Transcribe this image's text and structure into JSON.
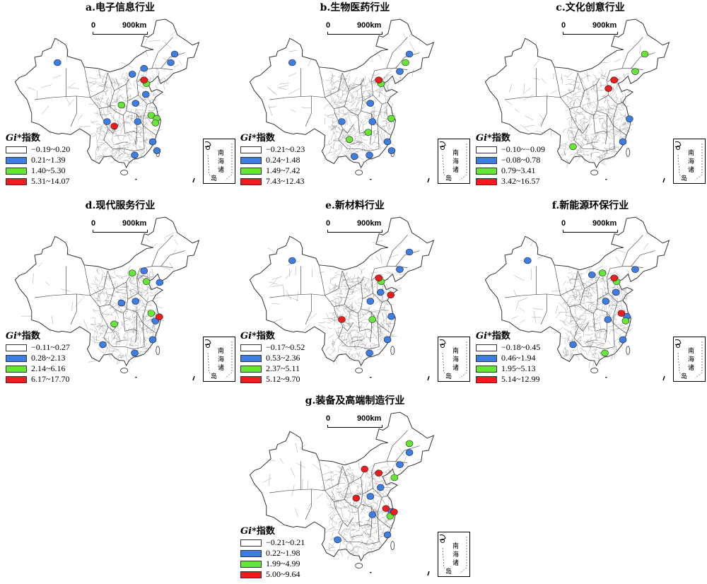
{
  "panels": [
    {
      "title": "a.电子信息行业",
      "scale": {
        "zero": "0",
        "dist": "900km"
      },
      "legend": {
        "gi": "Gi*",
        "suffix": "指数",
        "classes": [
          "−0.19~0.20",
          "0.21~1.39",
          "1.40~5.30",
          "5.31~14.07"
        ]
      },
      "hotspots": [
        {
          "cls": 1,
          "lon": 116.4,
          "lat": 42.5
        },
        {
          "cls": 1,
          "lon": 112.5,
          "lat": 41.2
        },
        {
          "cls": 1,
          "lon": 126.6,
          "lat": 45.7
        },
        {
          "cls": 1,
          "lon": 125.3,
          "lat": 43.8
        },
        {
          "cls": 1,
          "lon": 87.6,
          "lat": 43.8
        },
        {
          "cls": 1,
          "lon": 113.6,
          "lat": 34.7
        },
        {
          "cls": 1,
          "lon": 114.3,
          "lat": 30.6
        },
        {
          "cls": 1,
          "lon": 104.1,
          "lat": 30.6
        },
        {
          "cls": 1,
          "lon": 113.3,
          "lat": 23.1
        },
        {
          "cls": 1,
          "lon": 119.3,
          "lat": 26.1
        },
        {
          "cls": 1,
          "lon": 120.7,
          "lat": 24.1
        },
        {
          "cls": 1,
          "lon": 117.0,
          "lat": 36.7
        },
        {
          "cls": 2,
          "lon": 118.8,
          "lat": 32.0
        },
        {
          "cls": 2,
          "lon": 120.6,
          "lat": 31.3
        },
        {
          "cls": 2,
          "lon": 120.2,
          "lat": 30.3
        },
        {
          "cls": 2,
          "lon": 117.2,
          "lat": 39.1
        },
        {
          "cls": 2,
          "lon": 108.9,
          "lat": 34.3
        },
        {
          "cls": 3,
          "lon": 116.4,
          "lat": 39.9
        },
        {
          "cls": 3,
          "lon": 106.5,
          "lat": 29.6
        }
      ]
    },
    {
      "title": "b.生物医药行业",
      "scale": {
        "zero": "0",
        "dist": "900km"
      },
      "legend": {
        "gi": "Gi*",
        "suffix": "指数",
        "classes": [
          "−0.21~0.23",
          "0.24~1.48",
          "1.49~7.42",
          "7.43~12.43"
        ]
      },
      "hotspots": [
        {
          "cls": 1,
          "lon": 126.6,
          "lat": 45.7
        },
        {
          "cls": 1,
          "lon": 123.4,
          "lat": 41.8
        },
        {
          "cls": 1,
          "lon": 87.6,
          "lat": 43.8
        },
        {
          "cls": 1,
          "lon": 113.6,
          "lat": 34.7
        },
        {
          "cls": 1,
          "lon": 114.3,
          "lat": 30.6
        },
        {
          "cls": 1,
          "lon": 104.1,
          "lat": 30.6
        },
        {
          "cls": 1,
          "lon": 113.3,
          "lat": 23.1
        },
        {
          "cls": 1,
          "lon": 119.3,
          "lat": 26.1
        },
        {
          "cls": 1,
          "lon": 120.7,
          "lat": 24.1
        },
        {
          "cls": 1,
          "lon": 108.3,
          "lat": 22.8
        },
        {
          "cls": 2,
          "lon": 125.3,
          "lat": 43.8
        },
        {
          "cls": 2,
          "lon": 120.6,
          "lat": 31.3
        },
        {
          "cls": 2,
          "lon": 117.2,
          "lat": 39.1
        },
        {
          "cls": 2,
          "lon": 106.6,
          "lat": 26.6
        },
        {
          "cls": 2,
          "lon": 112.9,
          "lat": 28.2
        },
        {
          "cls": 3,
          "lon": 116.4,
          "lat": 39.9
        }
      ]
    },
    {
      "title": "c.文化创意行业",
      "scale": {
        "zero": "0",
        "dist": "900km"
      },
      "legend": {
        "gi": "Gi*",
        "suffix": "指数",
        "classes": [
          "−0.10~−0.09",
          "−0.08~0.78",
          "0.79~3.41",
          "3.42~16.57"
        ]
      },
      "hotspots": [
        {
          "cls": 1,
          "lon": 121.5,
          "lat": 31.2
        },
        {
          "cls": 1,
          "lon": 119.3,
          "lat": 26.1
        },
        {
          "cls": 2,
          "lon": 123.4,
          "lat": 41.8
        },
        {
          "cls": 2,
          "lon": 102.7,
          "lat": 25.0
        },
        {
          "cls": 2,
          "lon": 126.6,
          "lat": 45.7
        },
        {
          "cls": 3,
          "lon": 116.4,
          "lat": 39.9
        },
        {
          "cls": 3,
          "lon": 114.5,
          "lat": 38.0
        }
      ]
    },
    {
      "title": "d.现代服务行业",
      "scale": {
        "zero": "0",
        "dist": "900km"
      },
      "legend": {
        "gi": "Gi*",
        "suffix": "指数",
        "classes": [
          "−0.11~0.27",
          "0.28~2.13",
          "2.14~6.16",
          "6.17~17.70"
        ]
      },
      "hotspots": [
        {
          "cls": 1,
          "lon": 116.4,
          "lat": 41.5
        },
        {
          "cls": 1,
          "lon": 121.6,
          "lat": 38.9
        },
        {
          "cls": 1,
          "lon": 113.6,
          "lat": 34.7
        },
        {
          "cls": 1,
          "lon": 120.2,
          "lat": 30.3
        },
        {
          "cls": 1,
          "lon": 119.3,
          "lat": 26.1
        },
        {
          "cls": 1,
          "lon": 102.7,
          "lat": 25.0
        },
        {
          "cls": 1,
          "lon": 108.9,
          "lat": 34.3
        },
        {
          "cls": 1,
          "lon": 113.3,
          "lat": 23.1
        },
        {
          "cls": 2,
          "lon": 117.2,
          "lat": 39.1
        },
        {
          "cls": 2,
          "lon": 112.5,
          "lat": 41.0
        },
        {
          "cls": 2,
          "lon": 106.5,
          "lat": 29.6
        },
        {
          "cls": 2,
          "lon": 118.8,
          "lat": 32.0
        },
        {
          "cls": 3,
          "lon": 121.5,
          "lat": 31.2
        }
      ]
    },
    {
      "title": "e.新材料行业",
      "scale": {
        "zero": "0",
        "dist": "900km"
      },
      "legend": {
        "gi": "Gi*",
        "suffix": "指数",
        "classes": [
          "−0.17~0.52",
          "0.53~2.36",
          "2.37~5.11",
          "5.12~9.70"
        ]
      },
      "hotspots": [
        {
          "cls": 1,
          "lon": 126.6,
          "lat": 45.7
        },
        {
          "cls": 1,
          "lon": 123.4,
          "lat": 41.8
        },
        {
          "cls": 1,
          "lon": 87.6,
          "lat": 43.8
        },
        {
          "cls": 1,
          "lon": 117.0,
          "lat": 36.7
        },
        {
          "cls": 1,
          "lon": 120.6,
          "lat": 31.3
        },
        {
          "cls": 1,
          "lon": 119.3,
          "lat": 26.1
        },
        {
          "cls": 1,
          "lon": 113.3,
          "lat": 23.1
        },
        {
          "cls": 1,
          "lon": 113.6,
          "lat": 34.7
        },
        {
          "cls": 2,
          "lon": 117.2,
          "lat": 39.1
        },
        {
          "cls": 2,
          "lon": 114.3,
          "lat": 30.6
        },
        {
          "cls": 3,
          "lon": 116.4,
          "lat": 39.9
        },
        {
          "cls": 3,
          "lon": 104.1,
          "lat": 30.6
        },
        {
          "cls": 3,
          "lon": 120.4,
          "lat": 36.1
        }
      ]
    },
    {
      "title": "f.新能源环保行业",
      "scale": {
        "zero": "0",
        "dist": "900km"
      },
      "legend": {
        "gi": "Gi*",
        "suffix": "指数",
        "classes": [
          "−0.18~0.45",
          "0.46~1.94",
          "1.95~5.13",
          "5.14~12.99"
        ]
      },
      "hotspots": [
        {
          "cls": 1,
          "lon": 87.6,
          "lat": 43.8
        },
        {
          "cls": 1,
          "lon": 109.0,
          "lat": 40.6
        },
        {
          "cls": 1,
          "lon": 117.0,
          "lat": 36.7
        },
        {
          "cls": 1,
          "lon": 113.6,
          "lat": 34.7
        },
        {
          "cls": 1,
          "lon": 120.6,
          "lat": 31.3
        },
        {
          "cls": 1,
          "lon": 114.3,
          "lat": 30.6
        },
        {
          "cls": 1,
          "lon": 119.3,
          "lat": 26.1
        },
        {
          "cls": 1,
          "lon": 102.7,
          "lat": 25.0
        },
        {
          "cls": 1,
          "lon": 123.4,
          "lat": 41.8
        },
        {
          "cls": 2,
          "lon": 112.5,
          "lat": 41.0
        },
        {
          "cls": 2,
          "lon": 117.2,
          "lat": 39.1
        },
        {
          "cls": 2,
          "lon": 113.3,
          "lat": 23.1
        },
        {
          "cls": 2,
          "lon": 120.2,
          "lat": 30.3
        },
        {
          "cls": 3,
          "lon": 116.4,
          "lat": 39.9
        },
        {
          "cls": 3,
          "lon": 118.8,
          "lat": 32.0
        }
      ]
    },
    {
      "title": "g.装备及高端制造行业",
      "scale": {
        "zero": "0",
        "dist": "900km"
      },
      "legend": {
        "gi": "Gi*",
        "suffix": "指数",
        "classes": [
          "−0.21~0.21",
          "0.22~1.98",
          "1.99~4.99",
          "5.00~9.64"
        ]
      },
      "hotspots": [
        {
          "cls": 1,
          "lon": 126.6,
          "lat": 44.5
        },
        {
          "cls": 1,
          "lon": 123.4,
          "lat": 41.8
        },
        {
          "cls": 1,
          "lon": 117.0,
          "lat": 36.7
        },
        {
          "cls": 1,
          "lon": 113.6,
          "lat": 34.7
        },
        {
          "cls": 1,
          "lon": 120.6,
          "lat": 31.3
        },
        {
          "cls": 1,
          "lon": 119.3,
          "lat": 26.1
        },
        {
          "cls": 1,
          "lon": 102.7,
          "lat": 25.0
        },
        {
          "cls": 1,
          "lon": 114.3,
          "lat": 30.6
        },
        {
          "cls": 2,
          "lon": 126.6,
          "lat": 46.5
        },
        {
          "cls": 2,
          "lon": 121.6,
          "lat": 38.9
        },
        {
          "cls": 2,
          "lon": 120.2,
          "lat": 30.3
        },
        {
          "cls": 3,
          "lon": 111.7,
          "lat": 40.8
        },
        {
          "cls": 3,
          "lon": 116.4,
          "lat": 39.9
        },
        {
          "cls": 3,
          "lon": 108.9,
          "lat": 34.3
        },
        {
          "cls": 3,
          "lon": 118.8,
          "lat": 32.0
        },
        {
          "cls": 3,
          "lon": 121.5,
          "lat": 31.2
        }
      ]
    }
  ],
  "class_colors": [
    "#ffffff",
    "#3d7ee6",
    "#66e635",
    "#ee1c1c"
  ],
  "inset": {
    "line1": "南",
    "line2": "海",
    "line3": "诸",
    "line4": "岛"
  }
}
